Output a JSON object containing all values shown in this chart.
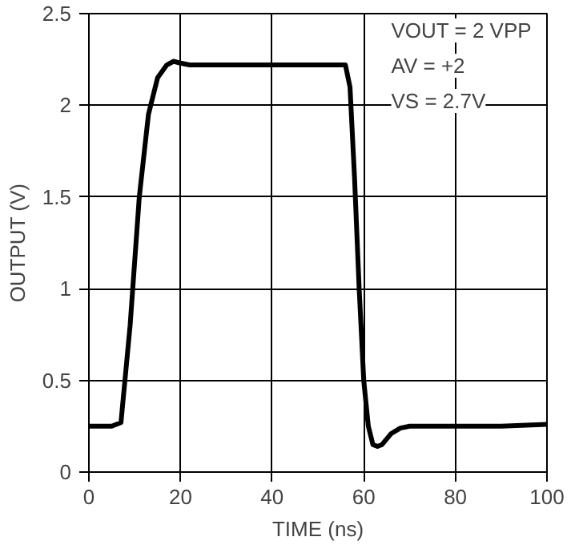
{
  "chart_data": {
    "type": "line",
    "xlabel": "TIME (ns)",
    "ylabel": "OUTPUT (V)",
    "xlim": [
      0,
      100
    ],
    "xticks": [
      0,
      20,
      40,
      60,
      80,
      100
    ],
    "ylim": [
      0,
      2.5
    ],
    "yticks": [
      0,
      0.5,
      1,
      1.5,
      2,
      2.5
    ],
    "grid": true,
    "line_style": "solid",
    "annotations": [
      "VOUT = 2 VPP",
      "AV = +2",
      "VS = 2.7V"
    ],
    "series": [
      {
        "color": "#000000",
        "x": [
          0,
          5,
          7,
          9,
          11,
          13,
          15,
          17,
          18.5,
          20,
          22,
          30,
          40,
          50,
          56,
          57,
          58,
          59,
          60,
          61,
          62,
          63,
          64,
          66,
          68,
          70,
          80,
          90,
          100
        ],
        "values": [
          0.25,
          0.25,
          0.27,
          0.8,
          1.5,
          1.95,
          2.15,
          2.22,
          2.24,
          2.23,
          2.22,
          2.22,
          2.22,
          2.22,
          2.22,
          2.1,
          1.6,
          1.0,
          0.5,
          0.25,
          0.15,
          0.14,
          0.15,
          0.21,
          0.24,
          0.25,
          0.25,
          0.25,
          0.26
        ]
      }
    ]
  }
}
